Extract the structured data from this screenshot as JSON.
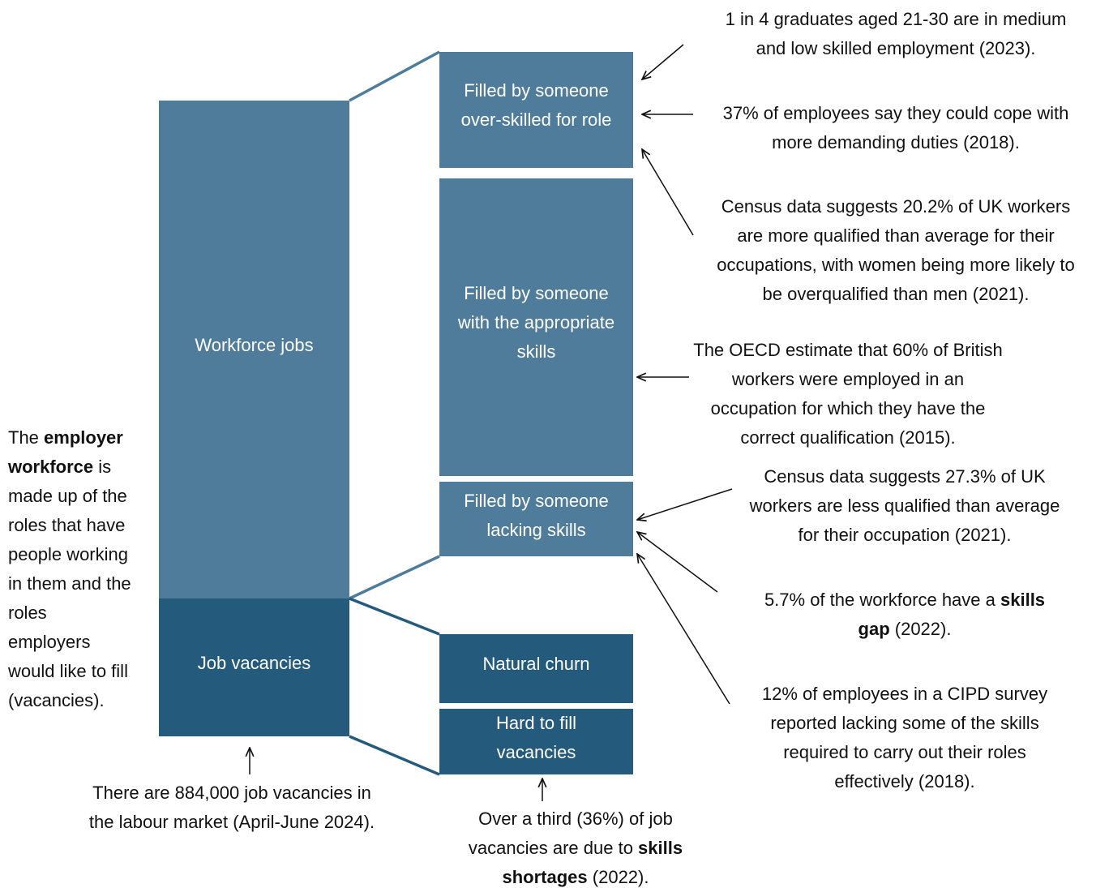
{
  "boxes": [
    {
      "label": [
        "Workforce jobs"
      ]
    },
    {
      "label": [
        "Job vacancies"
      ]
    },
    {
      "label": [
        "Filled by someone",
        "over-skilled for role"
      ]
    },
    {
      "label": [
        "Filled by someone",
        "with the appropriate",
        "skills"
      ]
    },
    {
      "label": [
        "Filled by someone",
        "lacking skills"
      ]
    },
    {
      "label": [
        "Natural churn"
      ]
    },
    {
      "label": [
        "Hard to fill",
        "vacancies"
      ]
    }
  ],
  "annotations": [
    {
      "lines": [
        [
          "1 in 4 graduates aged 21-30 are in medium"
        ],
        [
          "and low skilled employment (2023)."
        ]
      ]
    },
    {
      "lines": [
        [
          "37% of employees say they could cope with"
        ],
        [
          "more demanding duties (2018)."
        ]
      ]
    },
    {
      "lines": [
        [
          "Census data suggests 20.2% of UK workers"
        ],
        [
          "are more qualified than average for their"
        ],
        [
          "occupations, with women being more likely to"
        ],
        [
          "be overqualified than men (2021)."
        ]
      ]
    },
    {
      "lines": [
        [
          "The OECD estimate that 60% of British"
        ],
        [
          "workers were employed in an"
        ],
        [
          "occupation for which they have the"
        ],
        [
          "correct qualification (2015)."
        ]
      ]
    },
    {
      "lines": [
        [
          "Census data suggests 27.3% of UK"
        ],
        [
          "workers are less qualified than average"
        ],
        [
          "for their occupation (2021)."
        ]
      ]
    },
    {
      "lines": [
        [
          "5.7% of the workforce have a ",
          {
            "bold": "skills"
          }
        ],
        [
          {
            "bold": "gap"
          },
          " (2022)."
        ]
      ]
    },
    {
      "lines": [
        [
          "12% of employees in a CIPD survey"
        ],
        [
          "reported lacking some of the skills"
        ],
        [
          "required to carry out their roles"
        ],
        [
          "effectively (2018)."
        ]
      ]
    },
    {
      "lines": [
        [
          "The ",
          {
            "bold": "employer"
          }
        ],
        [
          {
            "bold": "workforce"
          },
          " is"
        ],
        [
          "made up of the"
        ],
        [
          "roles that have"
        ],
        [
          "people working"
        ],
        [
          "in them and the"
        ],
        [
          "roles"
        ],
        [
          "employers"
        ],
        [
          "would like to fill"
        ],
        [
          "(vacancies)."
        ]
      ]
    },
    {
      "lines": [
        [
          "There are 884,000 job vacancies in"
        ],
        [
          "the labour market (April-June 2024)."
        ]
      ]
    },
    {
      "lines": [
        [
          "Over a third (36%) of job"
        ],
        [
          "vacancies are due to ",
          {
            "bold": "skills"
          }
        ],
        [
          {
            "bold": "shortages"
          },
          " (2022)."
        ]
      ]
    }
  ]
}
